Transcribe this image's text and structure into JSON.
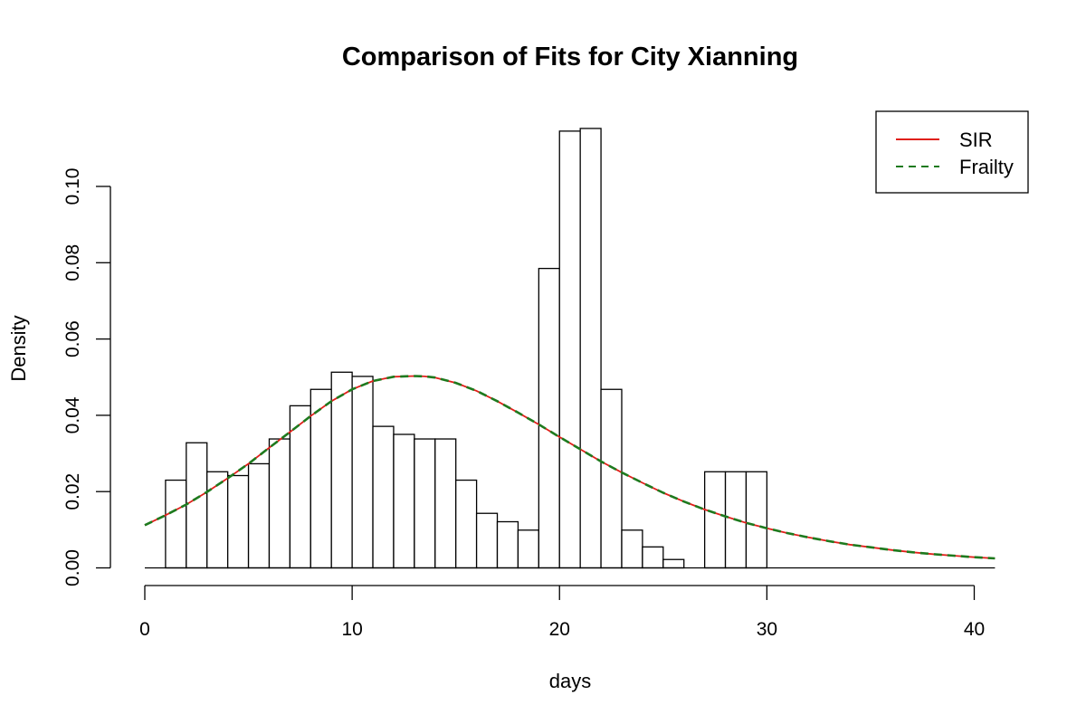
{
  "chart_data": {
    "type": "bar",
    "subtype": "histogram-with-density-curves",
    "title": "Comparison of Fits for City Xianning",
    "xlabel": "days",
    "ylabel": "Density",
    "xlim": [
      0,
      41
    ],
    "ylim": [
      0,
      0.115
    ],
    "x_ticks": [
      0,
      10,
      20,
      30,
      40
    ],
    "x_tick_labels": [
      "0",
      "10",
      "20",
      "30",
      "40"
    ],
    "y_ticks": [
      0.0,
      0.02,
      0.04,
      0.06,
      0.08,
      0.1
    ],
    "y_tick_labels": [
      "0.00",
      "0.02",
      "0.04",
      "0.06",
      "0.08",
      "0.10"
    ],
    "grid": false,
    "bin_width": 1,
    "bins": [
      {
        "x0": 1,
        "density": 0.023
      },
      {
        "x0": 2,
        "density": 0.0328
      },
      {
        "x0": 3,
        "density": 0.0252
      },
      {
        "x0": 4,
        "density": 0.0242
      },
      {
        "x0": 5,
        "density": 0.0273
      },
      {
        "x0": 6,
        "density": 0.0338
      },
      {
        "x0": 7,
        "density": 0.0425
      },
      {
        "x0": 8,
        "density": 0.0468
      },
      {
        "x0": 9,
        "density": 0.0513
      },
      {
        "x0": 10,
        "density": 0.0502
      },
      {
        "x0": 11,
        "density": 0.0371
      },
      {
        "x0": 12,
        "density": 0.035
      },
      {
        "x0": 13,
        "density": 0.0338
      },
      {
        "x0": 14,
        "density": 0.0338
      },
      {
        "x0": 15,
        "density": 0.023
      },
      {
        "x0": 16,
        "density": 0.0143
      },
      {
        "x0": 17,
        "density": 0.0121
      },
      {
        "x0": 18,
        "density": 0.0099
      },
      {
        "x0": 19,
        "density": 0.0785
      },
      {
        "x0": 20,
        "density": 0.1145
      },
      {
        "x0": 21,
        "density": 0.1152
      },
      {
        "x0": 22,
        "density": 0.0468
      },
      {
        "x0": 23,
        "density": 0.0099
      },
      {
        "x0": 24,
        "density": 0.0055
      },
      {
        "x0": 25,
        "density": 0.0022
      },
      {
        "x0": 26,
        "density": 0.0
      },
      {
        "x0": 27,
        "density": 0.0252
      },
      {
        "x0": 28,
        "density": 0.0252
      },
      {
        "x0": 29,
        "density": 0.0252
      },
      {
        "x0": 30,
        "density": 0.0
      },
      {
        "x0": 31,
        "density": 0.0
      },
      {
        "x0": 32,
        "density": 0.0
      },
      {
        "x0": 33,
        "density": 0.0
      },
      {
        "x0": 34,
        "density": 0.0
      },
      {
        "x0": 35,
        "density": 0.0
      },
      {
        "x0": 36,
        "density": 0.0
      },
      {
        "x0": 37,
        "density": 0.0
      },
      {
        "x0": 38,
        "density": 0.0
      },
      {
        "x0": 39,
        "density": 0.0
      },
      {
        "x0": 40,
        "density": 0.0
      }
    ],
    "series": [
      {
        "name": "SIR",
        "style": "solid",
        "color": "#e0201b",
        "x": [
          0,
          1,
          2,
          3,
          4,
          5,
          6,
          7,
          8,
          9,
          10,
          11,
          12,
          13,
          13.5,
          14,
          15,
          16,
          17,
          18,
          19,
          20,
          21,
          22,
          23,
          24,
          25,
          26,
          27,
          28,
          29,
          30,
          31,
          32,
          33,
          34,
          35,
          36,
          37,
          38,
          39,
          40,
          41
        ],
        "y": [
          0.0112,
          0.0138,
          0.0166,
          0.0199,
          0.0235,
          0.0273,
          0.0315,
          0.0356,
          0.0398,
          0.0437,
          0.0468,
          0.049,
          0.0501,
          0.0503,
          0.0502,
          0.0499,
          0.0485,
          0.0464,
          0.0437,
          0.0407,
          0.0376,
          0.0343,
          0.0311,
          0.0279,
          0.025,
          0.0223,
          0.0197,
          0.0174,
          0.0153,
          0.0135,
          0.0118,
          0.0104,
          0.0091,
          0.008,
          0.007,
          0.0061,
          0.0054,
          0.0047,
          0.0041,
          0.0036,
          0.0032,
          0.0028,
          0.0025
        ]
      },
      {
        "name": "Frailty",
        "style": "dashed",
        "color": "#1e7a1e",
        "x": [
          0,
          1,
          2,
          3,
          4,
          5,
          6,
          7,
          8,
          9,
          10,
          11,
          12,
          13,
          13.5,
          14,
          15,
          16,
          17,
          18,
          19,
          20,
          21,
          22,
          23,
          24,
          25,
          26,
          27,
          28,
          29,
          30,
          31,
          32,
          33,
          34,
          35,
          36,
          37,
          38,
          39,
          40,
          41
        ],
        "y": [
          0.0112,
          0.0138,
          0.0166,
          0.0199,
          0.0235,
          0.0273,
          0.0315,
          0.0356,
          0.0398,
          0.0437,
          0.0468,
          0.049,
          0.0501,
          0.0503,
          0.0502,
          0.0499,
          0.0485,
          0.0464,
          0.0437,
          0.0407,
          0.0376,
          0.0343,
          0.0311,
          0.0279,
          0.025,
          0.0223,
          0.0197,
          0.0174,
          0.0153,
          0.0135,
          0.0118,
          0.0104,
          0.0091,
          0.008,
          0.007,
          0.0061,
          0.0054,
          0.0047,
          0.0041,
          0.0036,
          0.0032,
          0.0028,
          0.0025
        ]
      }
    ],
    "legend": {
      "position": "top-right",
      "entries": [
        {
          "label": "SIR",
          "color": "#e0201b",
          "style": "solid"
        },
        {
          "label": "Frailty",
          "color": "#1e7a1e",
          "style": "dashed"
        }
      ]
    }
  }
}
